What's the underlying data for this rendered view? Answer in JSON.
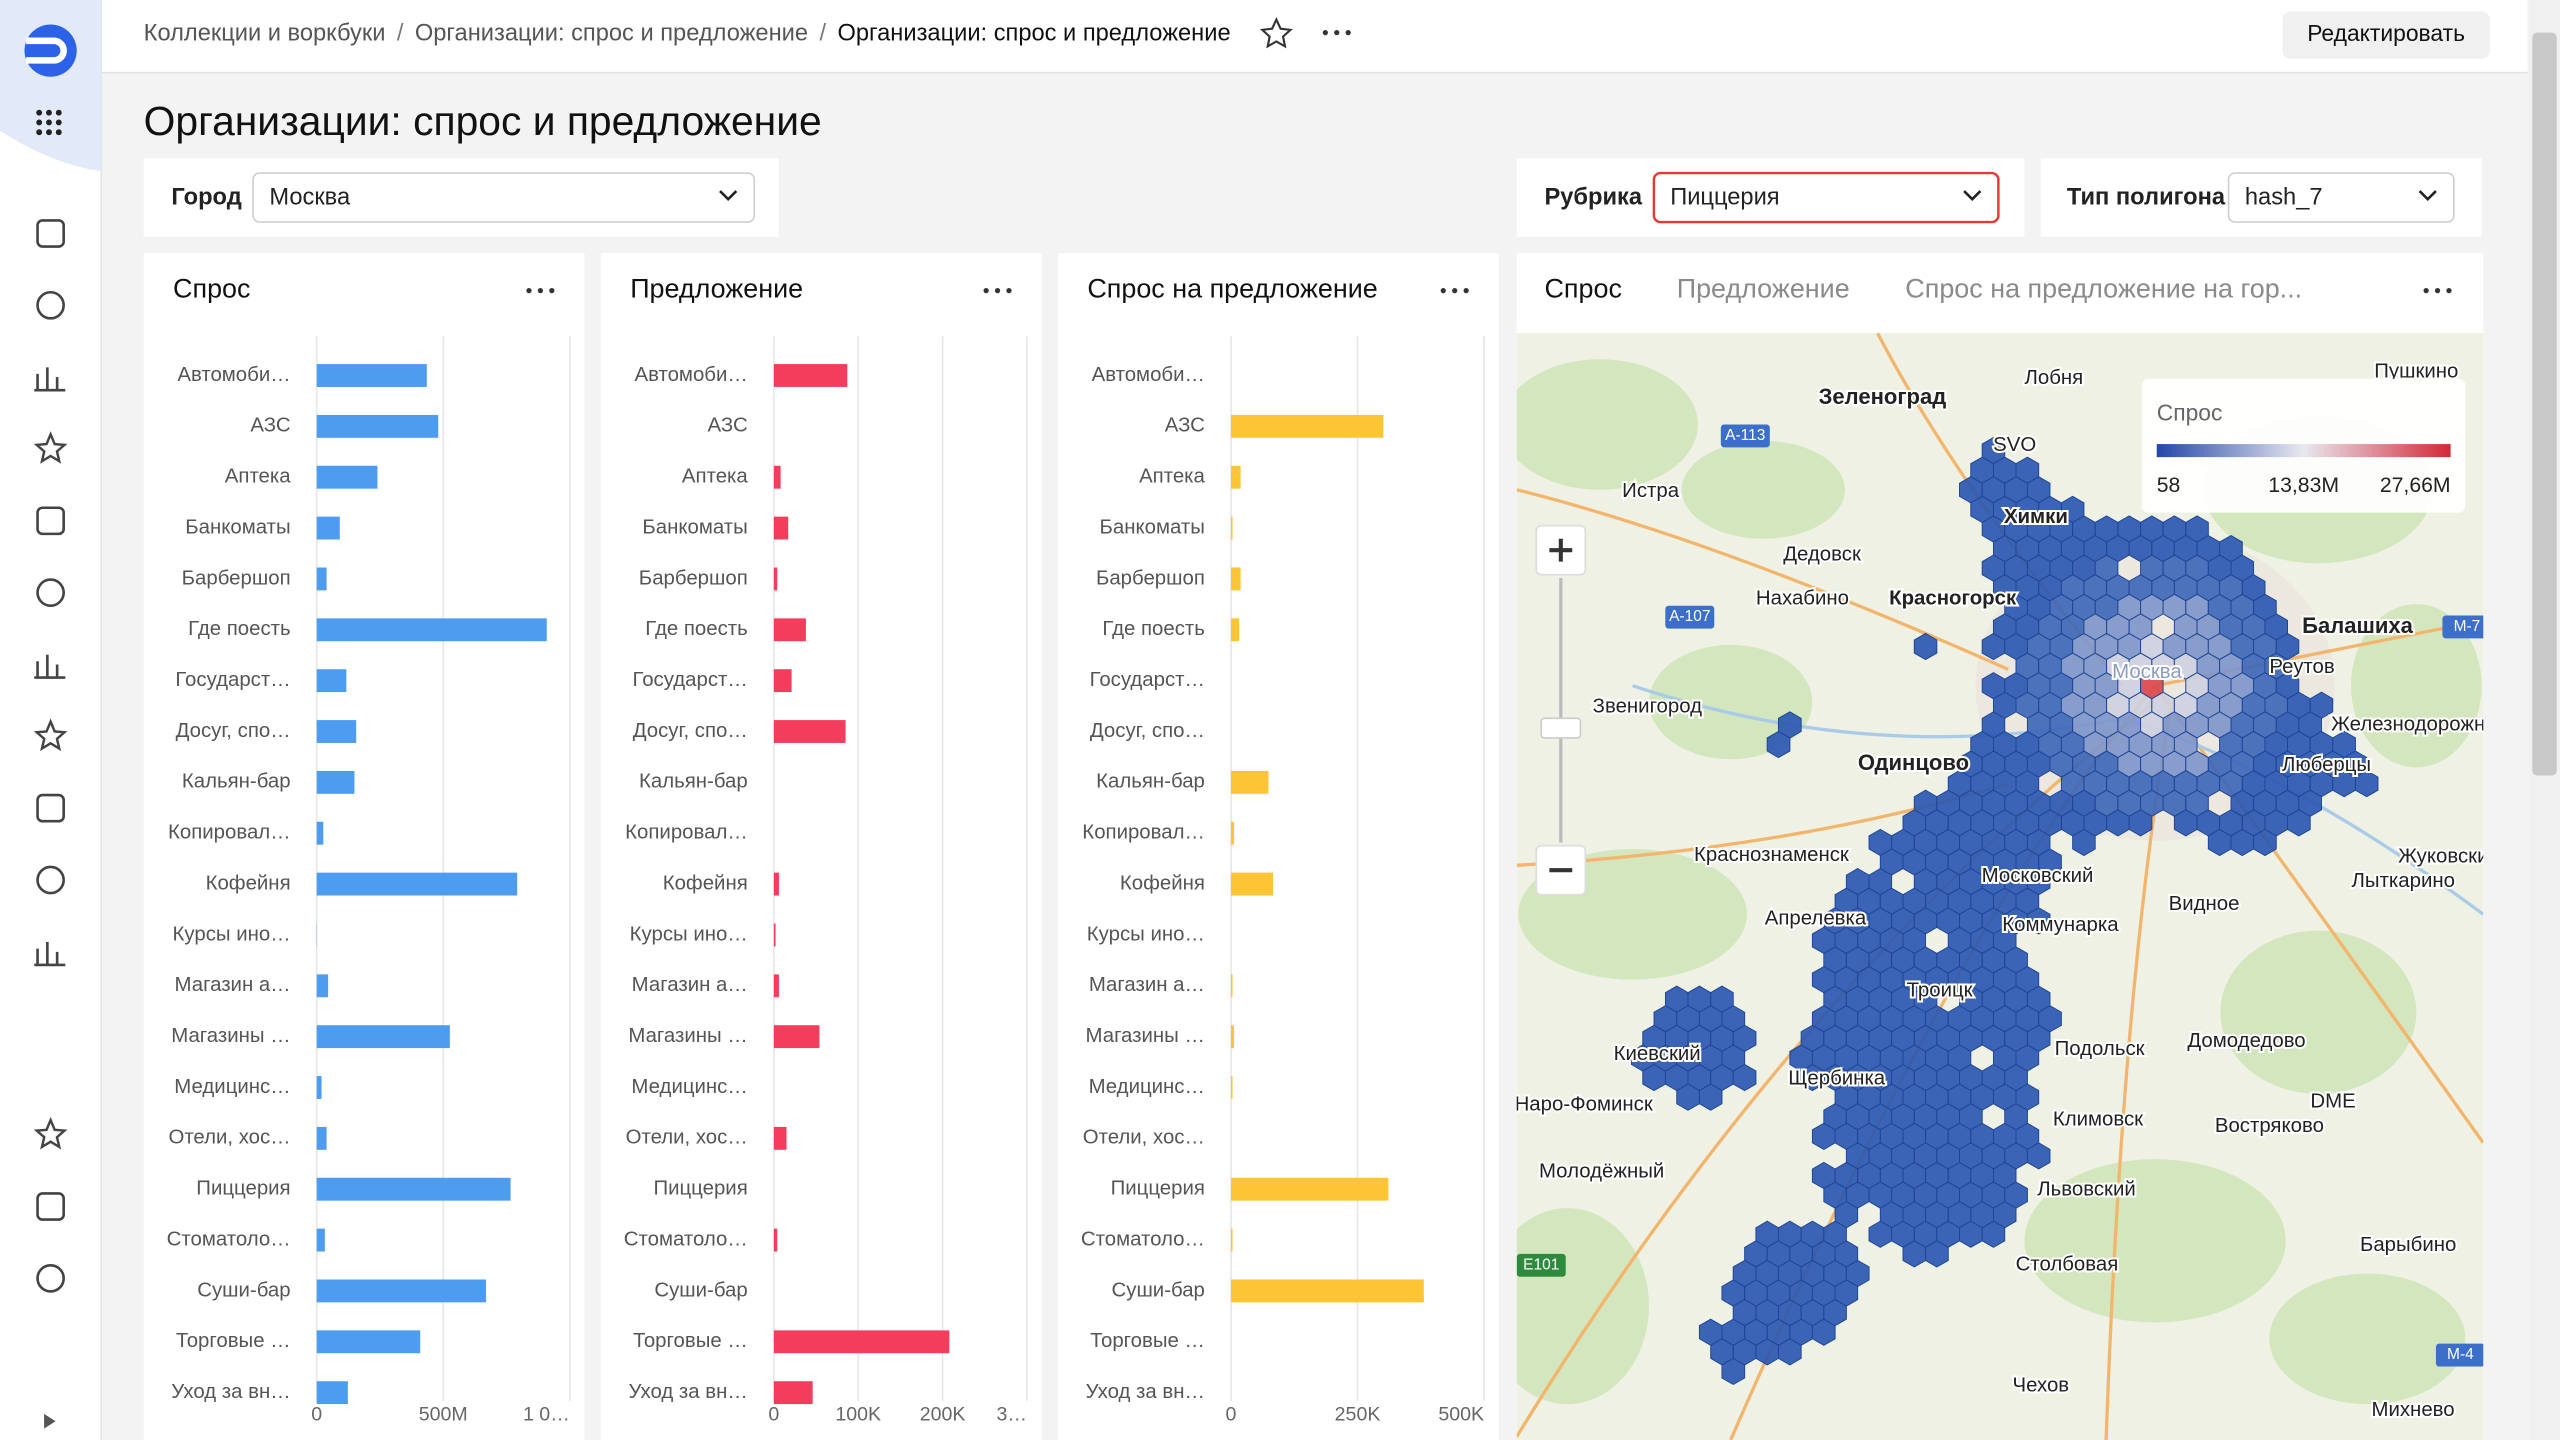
{
  "breadcrumbs": [
    "Коллекции и воркбуки",
    "Организации: спрос и предложение",
    "Организации: спрос и предложение"
  ],
  "separator": "/",
  "edit_button": "Редактировать",
  "title": "Организации: спрос и предложение",
  "filters": [
    {
      "label": "Город",
      "value": "Москва"
    },
    {
      "label": "Рубрика",
      "value": "Пиццерия"
    },
    {
      "label": "Тип полигона",
      "value": "hash_7"
    }
  ],
  "chart_data": [
    {
      "type": "bar",
      "orientation": "horizontal",
      "title": "Спрос",
      "color": "#4d9cf0",
      "grid": true,
      "categories": [
        "Автомоби…",
        "АЗС",
        "Аптека",
        "Банкоматы",
        "Барбершоп",
        "Где поесть",
        "Государст…",
        "Досуг, спо…",
        "Кальян-бар",
        "Копировал…",
        "Кофейня",
        "Курсы ино…",
        "Магазин а…",
        "Магазины …",
        "Медицинс…",
        "Отели, хос…",
        "Пиццерия",
        "Стоматоло…",
        "Суши-бар",
        "Торговые …",
        "Уход за вн…"
      ],
      "values": [
        435000000,
        480000000,
        240000000,
        91000000,
        39000000,
        909000000,
        117000000,
        156000000,
        149000000,
        26000000,
        792000000,
        1000000,
        45000000,
        526000000,
        19000000,
        39000000,
        766000000,
        32000000,
        669000000,
        409000000,
        123000000
      ],
      "xlim": [
        0,
        1000000000
      ],
      "xticks": [
        0,
        {
          "value": 500000000,
          "label": "500M"
        },
        {
          "value": 1000000000,
          "label": "1 0…"
        }
      ]
    },
    {
      "type": "bar",
      "orientation": "horizontal",
      "title": "Предложение",
      "color": "#f43d5c",
      "grid": true,
      "categories": [
        "Автомоби…",
        "АЗС",
        "Аптека",
        "Банкоматы",
        "Барбершоп",
        "Где поесть",
        "Государст…",
        "Досуг, спо…",
        "Кальян-бар",
        "Копировал…",
        "Кофейня",
        "Курсы ино…",
        "Магазин а…",
        "Магазины …",
        "Медицинс…",
        "Отели, хос…",
        "Пиццерия",
        "Стоматоло…",
        "Суши-бар",
        "Торговые …",
        "Уход за вн…"
      ],
      "values": [
        87000,
        0,
        8000,
        17000,
        4000,
        38000,
        21000,
        85000,
        0,
        0,
        6000,
        2000,
        6000,
        54000,
        0,
        15000,
        0,
        4000,
        0,
        208000,
        46000
      ],
      "xlim": [
        0,
        300000
      ],
      "xticks": [
        0,
        {
          "value": 100000,
          "label": "100K"
        },
        {
          "value": 200000,
          "label": "200K"
        },
        {
          "value": 300000,
          "label": "3…"
        }
      ]
    },
    {
      "type": "bar",
      "orientation": "horizontal",
      "title": "Спрос на предложение",
      "color": "#fdc535",
      "grid": true,
      "categories": [
        "Автомоби…",
        "АЗС",
        "Аптека",
        "Банкоматы",
        "Барбершоп",
        "Где поесть",
        "Государст…",
        "Досуг, спо…",
        "Кальян-бар",
        "Копировал…",
        "Кофейня",
        "Курсы ино…",
        "Магазин а…",
        "Магазины …",
        "Медицинс…",
        "Отели, хос…",
        "Пиццерия",
        "Стоматоло…",
        "Суши-бар",
        "Торговые …",
        "Уход за вн…"
      ],
      "values": [
        0,
        301000,
        19000,
        3000,
        19000,
        16000,
        0,
        0,
        74000,
        6000,
        83000,
        0,
        3000,
        6000,
        3000,
        0,
        311000,
        3000,
        381000,
        0,
        0
      ],
      "xlim": [
        0,
        500000
      ],
      "xticks": [
        0,
        {
          "value": 250000,
          "label": "250K"
        },
        {
          "value": 500000,
          "label": "500K"
        }
      ]
    }
  ],
  "map": {
    "tabs": [
      "Спрос",
      "Предложение",
      "Спрос на предложение на гор..."
    ],
    "legend": {
      "title": "Спрос",
      "ticks": [
        58,
        {
          "value": 13830000,
          "label": "13,83M"
        },
        {
          "value": 27660000,
          "label": "27,66M"
        }
      ]
    },
    "places": [
      "Зеленоград",
      "Лобня",
      "SVO",
      "Истра",
      "Химки",
      "Дедовск",
      "Нахабино",
      "Красногорск",
      "Балашиха",
      "Москва",
      "Реутов",
      "Звенигород",
      "Железнодорожн",
      "Одинцово",
      "Люберцы",
      "Краснознаменск",
      "Московский",
      "Жуковский",
      "Лыткарино",
      "Видное",
      "Апрелевка",
      "Коммунарка",
      "Троицк",
      "Подольск",
      "Домодедово",
      "Киевский",
      "Щербинка",
      "Климовск",
      "DME",
      "Наро-Фоминск",
      "Востряково",
      "Молодёжный",
      "Львовский",
      "Столбовая",
      "Барыбино",
      "Чехов",
      "Михнево",
      "Пушкино",
      "А-113",
      "А-107",
      "M-7",
      "E101",
      "M-4"
    ]
  }
}
